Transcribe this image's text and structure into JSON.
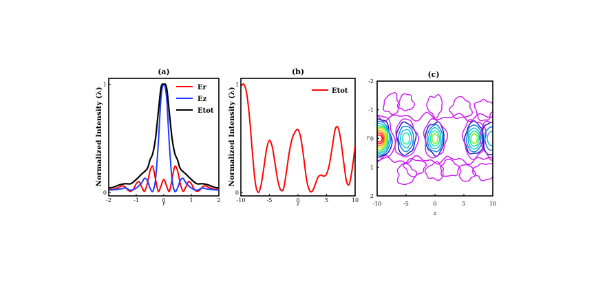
{
  "chart_data": [
    {
      "id": "a",
      "type": "line",
      "title": "(a)",
      "xlabel": "r",
      "ylabel": "Normalized Intensity (λ)",
      "xlim": [
        -2,
        2
      ],
      "ylim": [
        0,
        1
      ],
      "xticks": [
        "-2",
        "-1",
        "0",
        "1",
        "2"
      ],
      "yticks": [
        "0",
        "1"
      ],
      "legend_position": "top-right",
      "grid": false,
      "series": [
        {
          "name": "Er",
          "color": "#ff0000",
          "x": [
            -2.0,
            -1.8,
            -1.6,
            -1.5,
            -1.4,
            -1.3,
            -1.2,
            -1.1,
            -1.0,
            -0.9,
            -0.8,
            -0.7,
            -0.6,
            -0.5,
            -0.4,
            -0.3,
            -0.2,
            -0.1,
            0.0,
            0.1,
            0.2,
            0.3,
            0.4,
            0.5,
            0.6,
            0.7,
            0.8,
            0.9,
            1.0,
            1.1,
            1.2,
            1.3,
            1.4,
            1.5,
            1.6,
            1.8,
            2.0
          ],
          "y": [
            0.03,
            0.03,
            0.05,
            0.06,
            0.05,
            0.02,
            0.01,
            0.03,
            0.08,
            0.1,
            0.05,
            0.01,
            0.08,
            0.2,
            0.24,
            0.12,
            0.01,
            0.06,
            0.12,
            0.06,
            0.01,
            0.12,
            0.24,
            0.2,
            0.08,
            0.01,
            0.05,
            0.1,
            0.08,
            0.03,
            0.01,
            0.02,
            0.05,
            0.06,
            0.05,
            0.03,
            0.03
          ]
        },
        {
          "name": "Ez",
          "color": "#1a3cff",
          "x": [
            -2.0,
            -1.6,
            -1.4,
            -1.2,
            -1.0,
            -0.8,
            -0.7,
            -0.6,
            -0.5,
            -0.4,
            -0.3,
            -0.2,
            -0.1,
            0.0,
            0.1,
            0.2,
            0.3,
            0.4,
            0.5,
            0.6,
            0.7,
            0.8,
            1.0,
            1.2,
            1.4,
            1.6,
            2.0
          ],
          "y": [
            0.02,
            0.03,
            0.04,
            0.02,
            0.04,
            0.09,
            0.13,
            0.11,
            0.04,
            0.01,
            0.12,
            0.45,
            0.88,
            1.0,
            0.88,
            0.45,
            0.12,
            0.01,
            0.04,
            0.11,
            0.13,
            0.09,
            0.04,
            0.02,
            0.04,
            0.03,
            0.02
          ]
        },
        {
          "name": "Etot",
          "color": "#000000",
          "x": [
            -2.0,
            -1.8,
            -1.6,
            -1.4,
            -1.2,
            -1.0,
            -0.8,
            -0.6,
            -0.5,
            -0.4,
            -0.3,
            -0.2,
            -0.1,
            0.0,
            0.1,
            0.2,
            0.3,
            0.4,
            0.5,
            0.6,
            0.8,
            1.0,
            1.2,
            1.4,
            1.6,
            1.8,
            2.0
          ],
          "y": [
            0.04,
            0.05,
            0.07,
            0.08,
            0.08,
            0.12,
            0.17,
            0.22,
            0.3,
            0.36,
            0.5,
            0.74,
            0.97,
            1.0,
            0.97,
            0.74,
            0.5,
            0.36,
            0.3,
            0.22,
            0.17,
            0.12,
            0.08,
            0.08,
            0.07,
            0.05,
            0.04
          ]
        }
      ]
    },
    {
      "id": "b",
      "type": "line",
      "title": "(b)",
      "xlabel": "z",
      "ylabel": "Normalized Intensity (λ)",
      "xlim": [
        -10,
        10
      ],
      "ylim": [
        0,
        1
      ],
      "xticks": [
        "-10",
        "-5",
        "0",
        "5",
        "10"
      ],
      "yticks": [
        "0",
        "1"
      ],
      "legend_position": "top-right",
      "grid": false,
      "series": [
        {
          "name": "Etot",
          "color": "#ff0000",
          "x": [
            -10,
            -9.5,
            -9,
            -8.5,
            -8,
            -7.5,
            -7,
            -6.5,
            -6,
            -5.5,
            -5,
            -4.5,
            -4,
            -3.5,
            -3,
            -2.5,
            -2,
            -1.5,
            -1,
            -0.5,
            0,
            0.5,
            1,
            1.5,
            2,
            2.5,
            3,
            3.5,
            4,
            4.5,
            5,
            5.5,
            6,
            6.5,
            7,
            7.5,
            8,
            8.5,
            9,
            9.5,
            10
          ],
          "y": [
            0.98,
            1.0,
            0.92,
            0.7,
            0.38,
            0.1,
            0.0,
            0.06,
            0.22,
            0.4,
            0.48,
            0.42,
            0.26,
            0.1,
            0.02,
            0.04,
            0.2,
            0.38,
            0.5,
            0.56,
            0.58,
            0.5,
            0.32,
            0.12,
            0.02,
            0.01,
            0.07,
            0.14,
            0.16,
            0.15,
            0.17,
            0.26,
            0.42,
            0.58,
            0.6,
            0.48,
            0.28,
            0.1,
            0.08,
            0.22,
            0.43
          ]
        }
      ]
    },
    {
      "id": "c",
      "type": "contour",
      "title": "(c)",
      "xlabel": "z",
      "ylabel": "r",
      "xlim": [
        -10,
        10
      ],
      "ylim": [
        2,
        -2
      ],
      "xticks": [
        "-10",
        "-5",
        "0",
        "5",
        "10"
      ],
      "yticks": [
        "-2",
        "-1",
        "0",
        "1",
        "2"
      ],
      "grid": false,
      "colorscale": [
        "#cc22ee",
        "#2222bb",
        "#1188ee",
        "#22bbdd",
        "#11ee99",
        "#88ee22",
        "#eedd11",
        "#ff8800",
        "#ff1111"
      ],
      "peaks": [
        {
          "z": -9.6,
          "r": 0.0,
          "levels": 9
        },
        {
          "z": -5.0,
          "r": 0.0,
          "levels": 4
        },
        {
          "z": 0.0,
          "r": 0.0,
          "levels": 5
        },
        {
          "z": 6.8,
          "r": 0.0,
          "levels": 5
        },
        {
          "z": 9.8,
          "r": 0.0,
          "levels": 3
        }
      ]
    }
  ]
}
